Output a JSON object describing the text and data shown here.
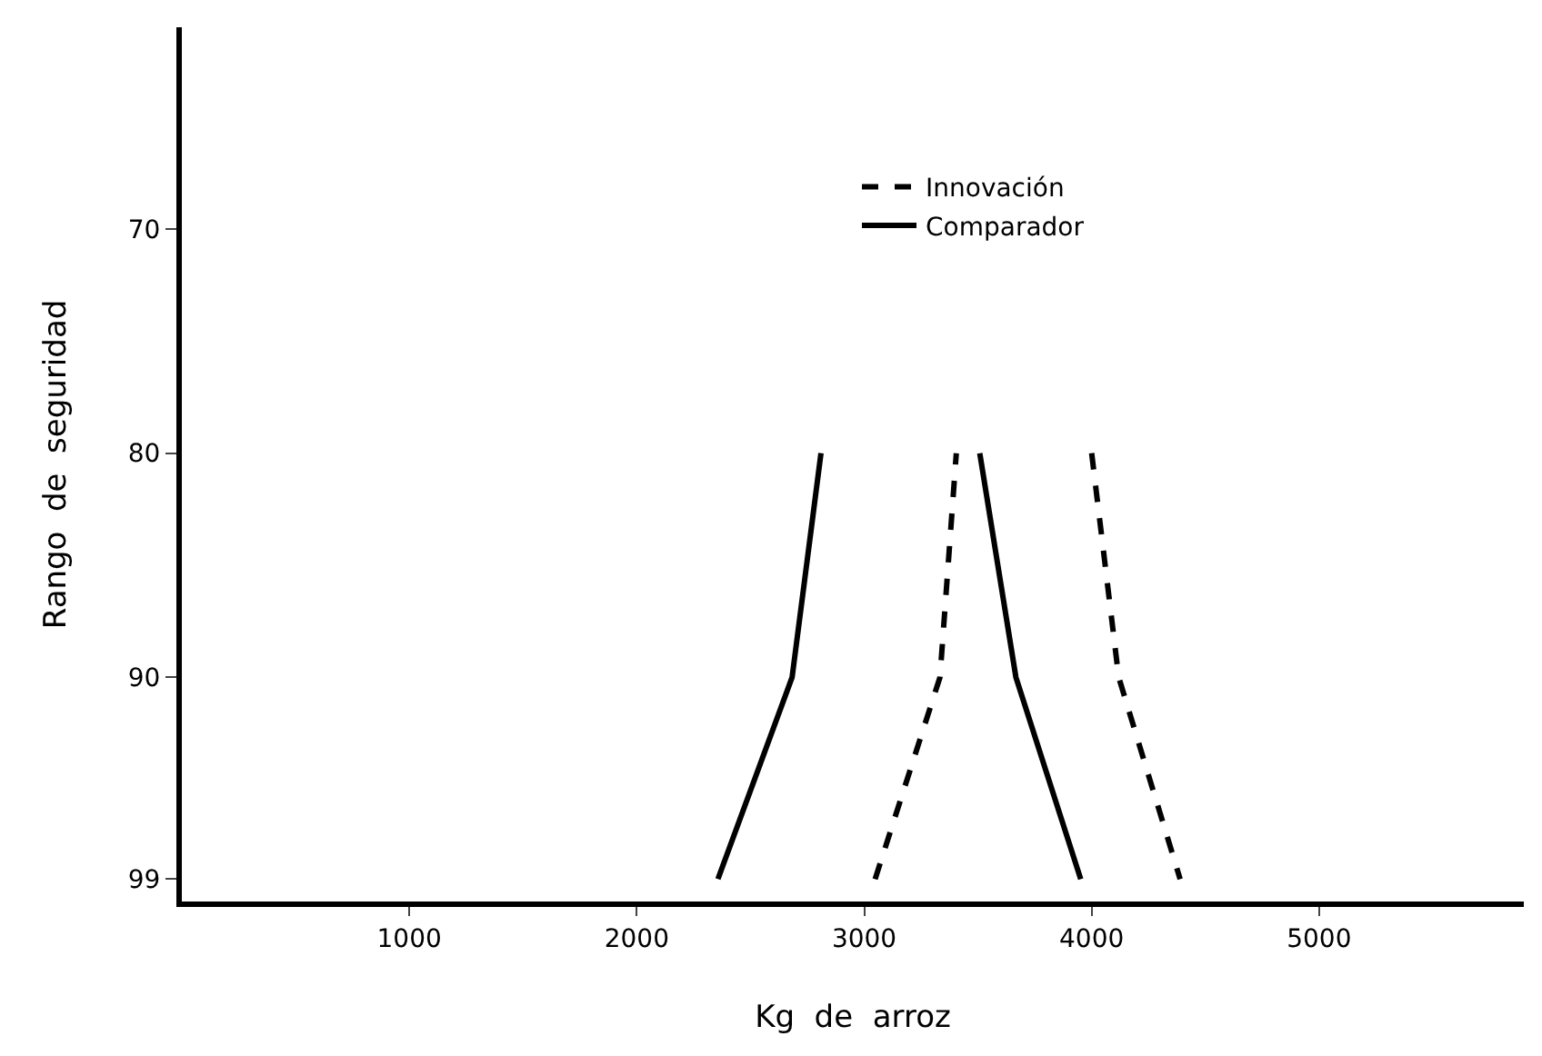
{
  "chart_data": {
    "type": "line",
    "xlabel": "Kg  de  arroz",
    "ylabel": "Rango  de  seguridad",
    "xlim": [
      0,
      5900
    ],
    "xticks": [
      1000,
      2000,
      3000,
      4000,
      5000
    ],
    "ylim": [
      100,
      61
    ],
    "yticks": [
      70,
      80,
      90,
      99
    ],
    "legend": "top",
    "marker": "none",
    "series": [
      {
        "name": "Innovación",
        "color": "#000000",
        "line_style": "dashed",
        "x": [
          3048,
          3333,
          3405,
          null,
          4000,
          4119,
          4389
        ],
        "values": [
          99,
          90,
          80,
          null,
          80,
          90,
          99
        ]
      },
      {
        "name": "Comparador",
        "color": "#000000",
        "line_style": "solid",
        "x": [
          2357,
          2683,
          2810,
          null,
          3508,
          3667,
          3952
        ],
        "values": [
          99,
          90,
          80,
          null,
          80,
          90,
          99
        ]
      }
    ]
  }
}
